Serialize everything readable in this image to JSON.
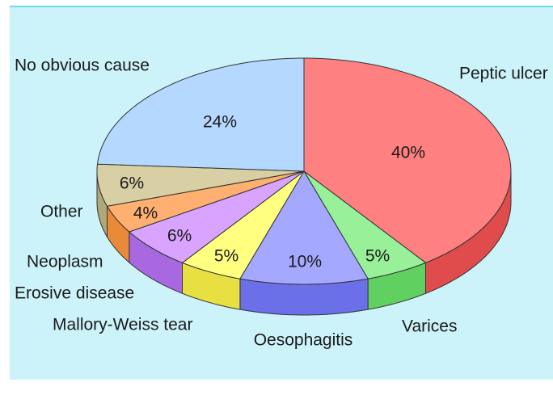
{
  "chart_data": {
    "type": "pie3d",
    "categories": [
      "Peptic ulcer",
      "Varices",
      "Oesophagitis",
      "Mallory-Weiss tear",
      "Erosive disease",
      "Neoplasm",
      "Other",
      "No obvious cause"
    ],
    "values": [
      40,
      5,
      10,
      5,
      6,
      4,
      6,
      24
    ],
    "value_labels": [
      "40%",
      "5%",
      "10%",
      "5%",
      "6%",
      "4%",
      "6%",
      "24%"
    ],
    "colors": [
      "#ff8080",
      "#98f098",
      "#a4a8ff",
      "#ffff80",
      "#d8a4ff",
      "#ffb070",
      "#d8d0a4",
      "#b4d8ff"
    ],
    "side_colors": [
      "#e04c4c",
      "#60d060",
      "#6c70e8",
      "#e8e040",
      "#a868e0",
      "#e88a38",
      "#b0a878",
      "#80a8d8"
    ]
  }
}
